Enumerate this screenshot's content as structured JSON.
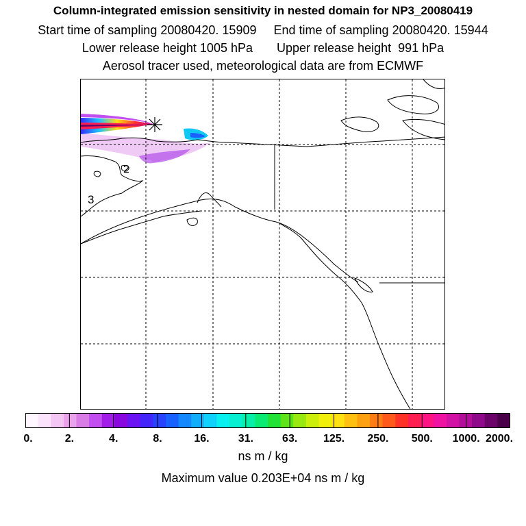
{
  "titles": {
    "line1": "Column-integrated emission sensitivity in nested domain for NP3_20080419",
    "line2": "Start time of sampling 20080420. 15909     End time of sampling 20080420. 15944",
    "line3": "Lower release height 1005 hPa       Upper release height  991 hPa",
    "line4": "Aerosol tracer used, meteorological data are from ECMWF"
  },
  "map": {
    "labels": {
      "label_2": "2",
      "label_3": "3"
    },
    "release_marker": "asterisk-icon"
  },
  "colorbar": {
    "ticks": [
      "0.",
      "2.",
      "4.",
      "8.",
      "16.",
      "31.",
      "63.",
      "125.",
      "250.",
      "500.",
      "1000.",
      "2000."
    ],
    "colors": [
      "#fff6ff",
      "#fbe4fb",
      "#f4c6f4",
      "#eaa2ea",
      "#da7ce6",
      "#c24ef0",
      "#a21ee8",
      "#8a08e0",
      "#6a14f4",
      "#4426fa",
      "#2842fe",
      "#1a62ff",
      "#1488ff",
      "#12aefe",
      "#10d0fc",
      "#08f0f0",
      "#08f0d2",
      "#08f0a8",
      "#0aeb74",
      "#22e238",
      "#5ee418",
      "#98ea10",
      "#ccf00c",
      "#f0f00a",
      "#ffe010",
      "#ffc010",
      "#ffa010",
      "#ff7c14",
      "#ff5a1c",
      "#ff3228",
      "#ff1e50",
      "#fe1482",
      "#f012a2",
      "#d212a2",
      "#b20e9a",
      "#8e0a8a",
      "#6a0468",
      "#4a0048"
    ],
    "units": "ns m / kg",
    "max_label": "Maximum value  0.203E+04 ns m / kg"
  }
}
